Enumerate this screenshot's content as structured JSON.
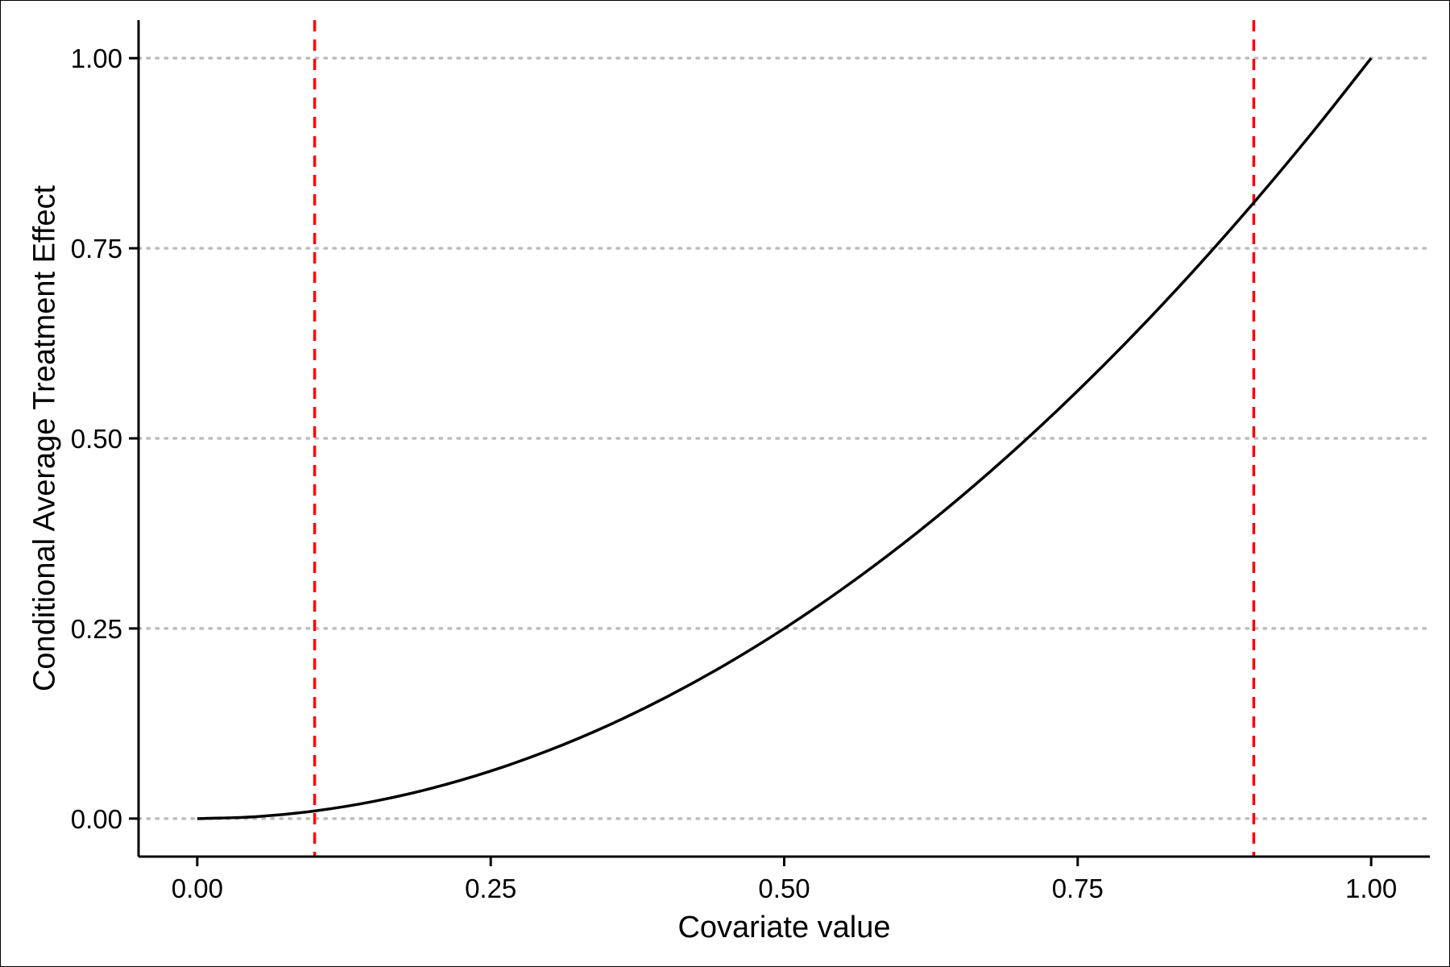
{
  "chart_data": {
    "type": "line",
    "title": "",
    "xlabel": "Covariate value",
    "ylabel": "Conditional Average Treatment Effect",
    "xlim": [
      -0.05,
      1.05
    ],
    "ylim": [
      -0.05,
      1.05
    ],
    "x_ticks": [
      0.0,
      0.25,
      0.5,
      0.75,
      1.0
    ],
    "x_tick_labels": [
      "0.00",
      "0.25",
      "0.50",
      "0.75",
      "1.00"
    ],
    "y_ticks": [
      0.0,
      0.25,
      0.5,
      0.75,
      1.0
    ],
    "y_tick_labels": [
      "0.00",
      "0.25",
      "0.50",
      "0.75",
      "1.00"
    ],
    "grid": "horizontal dotted",
    "series": [
      {
        "color": "#000000",
        "x": [
          0.0,
          0.05,
          0.1,
          0.15,
          0.2,
          0.25,
          0.3,
          0.35,
          0.4,
          0.45,
          0.5,
          0.55,
          0.6,
          0.65,
          0.7,
          0.75,
          0.8,
          0.85,
          0.9,
          0.95,
          1.0
        ],
        "y": [
          0.0,
          0.0025,
          0.01,
          0.0225,
          0.04,
          0.0625,
          0.09,
          0.1225,
          0.16,
          0.2025,
          0.25,
          0.3025,
          0.36,
          0.4225,
          0.49,
          0.5625,
          0.64,
          0.7225,
          0.81,
          0.9025,
          1.0
        ]
      }
    ],
    "vlines": [
      {
        "x": 0.1,
        "color": "#ff0000",
        "style": "dashed"
      },
      {
        "x": 0.9,
        "color": "#ff0000",
        "style": "dashed"
      }
    ]
  }
}
